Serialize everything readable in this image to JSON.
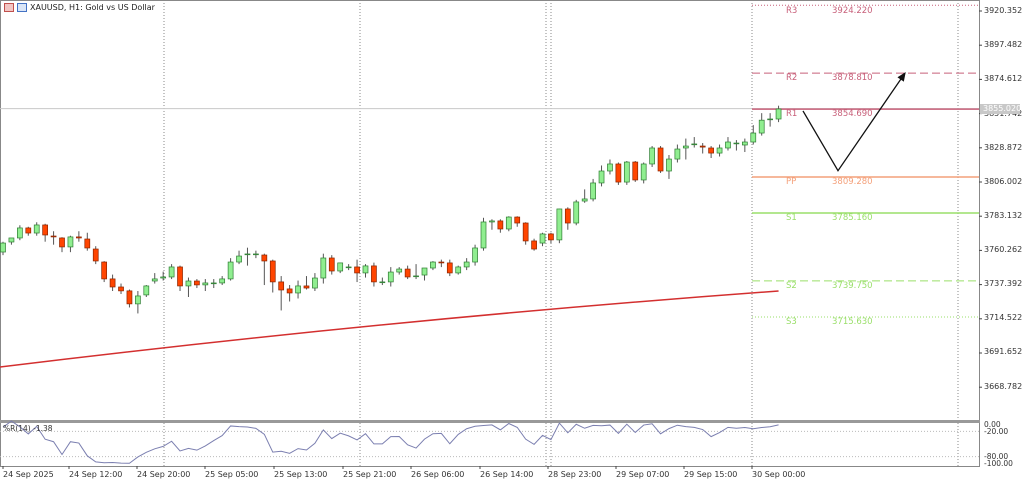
{
  "window": {
    "title": "XAUUSD, H1:  Gold vs US Dollar",
    "symbol": "XAUUSD",
    "timeframe": "H1"
  },
  "colors": {
    "bull": "#90ee90",
    "bull_border": "#2e7d32",
    "bear": "#ff4500",
    "bear_border": "#8b2500",
    "ma": "#d32f2f",
    "wr": "#7b7fb0",
    "r": "#c8607a",
    "pp": "#f4a07a",
    "s": "#9adf6a",
    "arrow": "#111111"
  },
  "price_axis": {
    "ticks": [
      "3920.352",
      "3897.482",
      "3874.612",
      "3851.742",
      "3828.872",
      "3806.002",
      "3783.132",
      "3760.262",
      "3737.392",
      "3714.522",
      "3691.652",
      "3668.782"
    ],
    "current_price": "3855.020",
    "min": 3668.782,
    "max": 3920.352
  },
  "time_axis": {
    "labels": [
      "24 Sep 2025",
      "24 Sep 12:00",
      "24 Sep 20:00",
      "25 Sep 05:00",
      "25 Sep 13:00",
      "25 Sep 21:00",
      "26 Sep 06:00",
      "26 Sep 14:00",
      "28 Sep 23:00",
      "29 Sep 07:00",
      "29 Sep 15:00",
      "30 Sep 00:00"
    ]
  },
  "pivots": [
    {
      "name": "R3",
      "value": "3924.220",
      "style": "dotted",
      "kind": "r"
    },
    {
      "name": "R2",
      "value": "3878.810",
      "style": "dashed",
      "kind": "r"
    },
    {
      "name": "R1",
      "value": "3854.690",
      "style": "solid",
      "kind": "r"
    },
    {
      "name": "PP",
      "value": "3809.280",
      "style": "solid",
      "kind": "pp"
    },
    {
      "name": "S1",
      "value": "3785.160",
      "style": "solid",
      "kind": "s"
    },
    {
      "name": "S2",
      "value": "3739.750",
      "style": "dashed",
      "kind": "s"
    },
    {
      "name": "S3",
      "value": "3715.630",
      "style": "dotted",
      "kind": "s"
    }
  ],
  "moving_average": {
    "start": 3682.2,
    "mid": 3711.0,
    "end": 3733.0
  },
  "projection_arrow": {
    "points": [
      3853.5,
      3813.5,
      3878.8
    ]
  },
  "indicator": {
    "label": "%R(14) -1.38",
    "levels": [
      "0.00",
      "-20.00",
      "-80.00",
      "-100.00"
    ],
    "period": 14
  },
  "candles": [
    [
      3759.1,
      3766,
      3757,
      3765.1
    ],
    [
      3765.8,
      3768,
      3764,
      3768.5
    ],
    [
      3768.5,
      3777,
      3767,
      3775.2
    ],
    [
      3775.2,
      3776,
      3770,
      3771.8
    ],
    [
      3771.8,
      3779,
      3770,
      3777.2
    ],
    [
      3777.2,
      3778,
      3766,
      3770.5
    ],
    [
      3769.8,
      3773,
      3764,
      3769.2
    ],
    [
      3768.5,
      3769,
      3759,
      3762.5
    ],
    [
      3762.5,
      3770,
      3759,
      3769.2
    ],
    [
      3769.2,
      3773,
      3766,
      3768.5
    ],
    [
      3767.8,
      3772,
      3760,
      3761.8
    ],
    [
      3761.1,
      3763,
      3751,
      3753.1
    ],
    [
      3752.4,
      3753,
      3739,
      3741.1
    ],
    [
      3741.1,
      3744,
      3733,
      3735.7
    ],
    [
      3735.7,
      3738,
      3731,
      3733.1
    ],
    [
      3733.1,
      3734,
      3722,
      3724.4
    ],
    [
      3724.4,
      3733,
      3718,
      3729.7
    ],
    [
      3730.4,
      3737,
      3729,
      3736.4
    ],
    [
      3739.7,
      3745,
      3738,
      3741.1
    ],
    [
      3741.7,
      3746,
      3740,
      3742.4
    ],
    [
      3742.4,
      3751,
      3741,
      3749.1
    ],
    [
      3749.1,
      3750,
      3733,
      3736.4
    ],
    [
      3736.4,
      3742,
      3729,
      3739.7
    ],
    [
      3739.7,
      3741,
      3735,
      3737.1
    ],
    [
      3737.1,
      3741,
      3733,
      3738.4
    ],
    [
      3738.4,
      3741,
      3735,
      3738.4
    ],
    [
      3738.4,
      3743,
      3737,
      3741.1
    ],
    [
      3741.1,
      3755,
      3740,
      3752.4
    ],
    [
      3752.4,
      3760,
      3751,
      3756.4
    ],
    [
      3757.8,
      3762,
      3750,
      3757.8
    ],
    [
      3757.8,
      3760,
      3755,
      3757.8
    ],
    [
      3757.1,
      3758,
      3737,
      3753.1
    ],
    [
      3753.1,
      3754,
      3732,
      3739.1
    ],
    [
      3739.1,
      3743,
      3720,
      3733.7
    ],
    [
      3734.4,
      3737,
      3726,
      3731.7
    ],
    [
      3731.7,
      3740,
      3728,
      3736.4
    ],
    [
      3736.4,
      3743,
      3734,
      3735.0
    ],
    [
      3735.0,
      3745,
      3733,
      3741.7
    ],
    [
      3741.7,
      3758,
      3738,
      3755.1
    ],
    [
      3755.1,
      3757,
      3744,
      3746.4
    ],
    [
      3746.4,
      3752,
      3745,
      3751.8
    ],
    [
      3749.1,
      3751,
      3747,
      3749.1
    ],
    [
      3749.1,
      3754,
      3739,
      3745.1
    ],
    [
      3745.1,
      3751,
      3742,
      3749.8
    ],
    [
      3749.8,
      3752,
      3736,
      3739.1
    ],
    [
      3739.1,
      3742,
      3737,
      3739.1
    ],
    [
      3739.1,
      3749,
      3736,
      3745.7
    ],
    [
      3745.7,
      3749,
      3744,
      3747.7
    ],
    [
      3747.7,
      3750,
      3741,
      3742.4
    ],
    [
      3743.1,
      3751,
      3741,
      3743.1
    ],
    [
      3743.7,
      3748,
      3740,
      3748.4
    ],
    [
      3748.4,
      3753,
      3747,
      3752.4
    ],
    [
      3752.4,
      3754,
      3749,
      3751.8
    ],
    [
      3751.8,
      3754,
      3743,
      3745.1
    ],
    [
      3745.1,
      3750,
      3744,
      3749.1
    ],
    [
      3749.1,
      3755,
      3747,
      3752.4
    ],
    [
      3752.4,
      3764,
      3750,
      3761.8
    ],
    [
      3761.8,
      3782,
      3760,
      3779.2
    ],
    [
      3779.2,
      3781,
      3774,
      3779.9
    ],
    [
      3779.9,
      3781,
      3772,
      3774.5
    ],
    [
      3774.5,
      3783,
      3773,
      3782.5
    ],
    [
      3782.5,
      3783,
      3776,
      3778.5
    ],
    [
      3778.5,
      3779,
      3764,
      3766.5
    ],
    [
      3766.5,
      3768,
      3760,
      3761.1
    ],
    [
      3765.1,
      3772,
      3763,
      3771.2
    ],
    [
      3771.2,
      3772,
      3765,
      3767.2
    ],
    [
      3767.2,
      3788,
      3765,
      3787.9
    ],
    [
      3787.9,
      3789,
      3774,
      3778.5
    ],
    [
      3778.5,
      3794,
      3777,
      3792.6
    ],
    [
      3793.2,
      3801,
      3792,
      3794.6
    ],
    [
      3794.6,
      3808,
      3793,
      3805.3
    ],
    [
      3805.3,
      3817,
      3803,
      3813.3
    ],
    [
      3813.3,
      3821,
      3811,
      3818.0
    ],
    [
      3818.0,
      3819,
      3804,
      3805.9
    ],
    [
      3805.9,
      3820,
      3804,
      3819.3
    ],
    [
      3819.3,
      3820,
      3806,
      3807.3
    ],
    [
      3807.3,
      3819,
      3805,
      3818.0
    ],
    [
      3818.0,
      3830,
      3816,
      3828.7
    ],
    [
      3828.7,
      3830,
      3812,
      3813.3
    ],
    [
      3813.3,
      3824,
      3808,
      3821.3
    ],
    [
      3821.3,
      3831,
      3819,
      3828.0
    ],
    [
      3828.7,
      3835,
      3821,
      3830.0
    ],
    [
      3831.4,
      3836,
      3829,
      3831.4
    ],
    [
      3830.0,
      3832,
      3825,
      3829.3
    ],
    [
      3828.7,
      3830,
      3822,
      3825.3
    ],
    [
      3825.3,
      3831,
      3823,
      3828.7
    ],
    [
      3828.7,
      3836,
      3827,
      3832.7
    ],
    [
      3832.0,
      3834,
      3827,
      3832.0
    ],
    [
      3830.7,
      3835,
      3826,
      3832.7
    ],
    [
      3832.7,
      3844,
      3831,
      3838.7
    ],
    [
      3838.7,
      3852,
      3837,
      3847.3
    ],
    [
      3848.1,
      3852,
      3843,
      3848.1
    ],
    [
      3848.1,
      3857,
      3846,
      3854.8
    ]
  ]
}
